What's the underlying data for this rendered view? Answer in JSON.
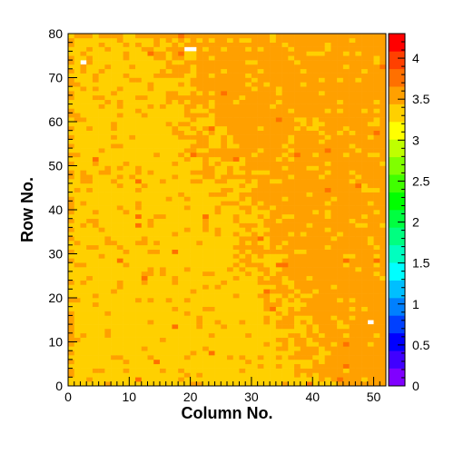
{
  "chart_data": {
    "type": "heatmap",
    "title": "",
    "xlabel": "Column No.",
    "ylabel": "Row No.",
    "xlim": [
      0,
      52
    ],
    "ylim": [
      0,
      80
    ],
    "x_ticks": [
      "0",
      "10",
      "20",
      "30",
      "40",
      "50"
    ],
    "y_ticks": [
      "0",
      "10",
      "20",
      "30",
      "40",
      "50",
      "60",
      "70",
      "80"
    ],
    "z_range": [
      0,
      4.3
    ],
    "z_ticks": [
      "0",
      "0.5",
      "1",
      "1.5",
      "2",
      "2.5",
      "3",
      "3.5",
      "4"
    ],
    "grid": false,
    "n_columns": 52,
    "n_rows": 80,
    "palette": [
      "#8000ff",
      "#4000ff",
      "#0000ff",
      "#0040ff",
      "#0080ff",
      "#00bfff",
      "#00ffff",
      "#00ffbf",
      "#00ff80",
      "#00ff40",
      "#00ff00",
      "#40ff00",
      "#80ff00",
      "#bfff00",
      "#ffff00",
      "#ffd000",
      "#ffa000",
      "#ff7000",
      "#ff4000",
      "#ff0000"
    ],
    "value_model": {
      "description": "Approximate per-cell values read from the colour map: left side near 3.4 (yellow), right side near 3.6 (orange); cold white cells at column 2 row 73, columns 19-20 row 76, column 49 row 14",
      "left_value": 3.38,
      "right_value": 3.62,
      "hot_value": 3.85,
      "empty_cells": [
        [
          2,
          73
        ],
        [
          19,
          76
        ],
        [
          20,
          76
        ],
        [
          49,
          14
        ]
      ]
    }
  }
}
